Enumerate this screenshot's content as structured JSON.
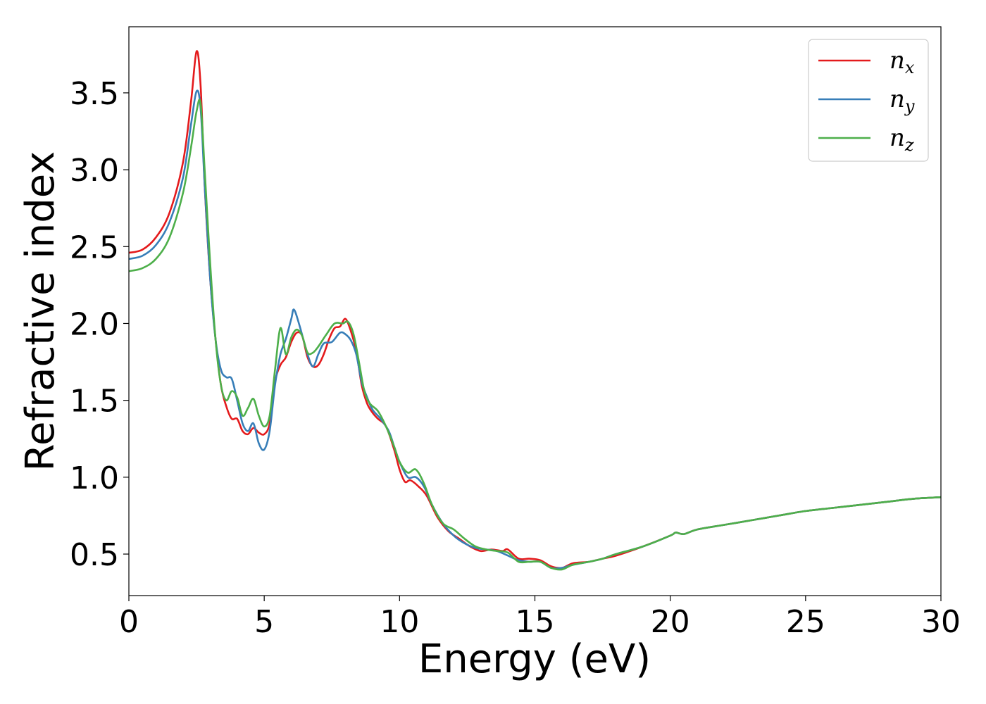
{
  "chart_data": {
    "type": "line",
    "xlabel": "Energy (eV)",
    "ylabel": "Refractive index",
    "xlim": [
      0,
      30
    ],
    "ylim": [
      0.23,
      3.93
    ],
    "xticks": [
      0,
      5,
      10,
      15,
      20,
      25,
      30
    ],
    "xtick_labels": [
      "0",
      "5",
      "10",
      "15",
      "20",
      "25",
      "30"
    ],
    "yticks": [
      0.5,
      1.0,
      1.5,
      2.0,
      2.5,
      3.0,
      3.5
    ],
    "ytick_labels": [
      "0.5",
      "1.0",
      "1.5",
      "2.0",
      "2.5",
      "3.0",
      "3.5"
    ],
    "grid": false,
    "legend_position": "top-right",
    "series": [
      {
        "name": "n_x",
        "label_base": "n",
        "label_sub": "x",
        "color": "#e41a1c",
        "points": [
          [
            0,
            2.46
          ],
          [
            0.5,
            2.48
          ],
          [
            1.0,
            2.56
          ],
          [
            1.5,
            2.72
          ],
          [
            2.0,
            3.05
          ],
          [
            2.3,
            3.45
          ],
          [
            2.5,
            3.77
          ],
          [
            2.65,
            3.55
          ],
          [
            2.8,
            2.9
          ],
          [
            3.0,
            2.3
          ],
          [
            3.2,
            1.9
          ],
          [
            3.4,
            1.6
          ],
          [
            3.6,
            1.46
          ],
          [
            3.8,
            1.38
          ],
          [
            4.0,
            1.38
          ],
          [
            4.2,
            1.3
          ],
          [
            4.4,
            1.28
          ],
          [
            4.6,
            1.32
          ],
          [
            4.8,
            1.29
          ],
          [
            5.0,
            1.28
          ],
          [
            5.2,
            1.35
          ],
          [
            5.4,
            1.62
          ],
          [
            5.6,
            1.73
          ],
          [
            5.8,
            1.78
          ],
          [
            6.0,
            1.88
          ],
          [
            6.2,
            1.94
          ],
          [
            6.4,
            1.92
          ],
          [
            6.6,
            1.78
          ],
          [
            6.8,
            1.72
          ],
          [
            7.0,
            1.73
          ],
          [
            7.2,
            1.8
          ],
          [
            7.4,
            1.9
          ],
          [
            7.6,
            1.97
          ],
          [
            7.8,
            1.98
          ],
          [
            8.0,
            2.03
          ],
          [
            8.2,
            1.95
          ],
          [
            8.4,
            1.82
          ],
          [
            8.6,
            1.6
          ],
          [
            8.8,
            1.48
          ],
          [
            9.0,
            1.42
          ],
          [
            9.2,
            1.38
          ],
          [
            9.5,
            1.33
          ],
          [
            9.8,
            1.18
          ],
          [
            10.0,
            1.05
          ],
          [
            10.2,
            0.97
          ],
          [
            10.4,
            0.98
          ],
          [
            10.7,
            0.94
          ],
          [
            11.0,
            0.88
          ],
          [
            11.4,
            0.74
          ],
          [
            11.8,
            0.65
          ],
          [
            12.2,
            0.6
          ],
          [
            12.6,
            0.55
          ],
          [
            13.0,
            0.52
          ],
          [
            13.4,
            0.53
          ],
          [
            13.8,
            0.52
          ],
          [
            14.0,
            0.53
          ],
          [
            14.4,
            0.47
          ],
          [
            14.8,
            0.47
          ],
          [
            15.2,
            0.46
          ],
          [
            15.6,
            0.42
          ],
          [
            16.0,
            0.41
          ],
          [
            16.4,
            0.44
          ],
          [
            17.0,
            0.45
          ],
          [
            17.5,
            0.47
          ],
          [
            18.0,
            0.49
          ],
          [
            19.0,
            0.55
          ],
          [
            20.0,
            0.62
          ],
          [
            20.2,
            0.64
          ],
          [
            20.5,
            0.63
          ],
          [
            21.0,
            0.66
          ],
          [
            22.0,
            0.69
          ],
          [
            23.0,
            0.72
          ],
          [
            24.0,
            0.75
          ],
          [
            25.0,
            0.78
          ],
          [
            26.0,
            0.8
          ],
          [
            27.0,
            0.82
          ],
          [
            28.0,
            0.84
          ],
          [
            29.0,
            0.86
          ],
          [
            30.0,
            0.87
          ]
        ]
      },
      {
        "name": "n_y",
        "label_base": "n",
        "label_sub": "y",
        "color": "#377eb8",
        "points": [
          [
            0,
            2.42
          ],
          [
            0.5,
            2.44
          ],
          [
            1.0,
            2.51
          ],
          [
            1.5,
            2.66
          ],
          [
            2.0,
            2.95
          ],
          [
            2.3,
            3.3
          ],
          [
            2.5,
            3.51
          ],
          [
            2.65,
            3.4
          ],
          [
            2.8,
            2.9
          ],
          [
            3.0,
            2.3
          ],
          [
            3.2,
            1.9
          ],
          [
            3.4,
            1.7
          ],
          [
            3.6,
            1.65
          ],
          [
            3.8,
            1.64
          ],
          [
            4.0,
            1.5
          ],
          [
            4.2,
            1.35
          ],
          [
            4.4,
            1.3
          ],
          [
            4.6,
            1.35
          ],
          [
            4.8,
            1.22
          ],
          [
            5.0,
            1.18
          ],
          [
            5.2,
            1.3
          ],
          [
            5.4,
            1.6
          ],
          [
            5.6,
            1.8
          ],
          [
            5.8,
            1.9
          ],
          [
            6.0,
            2.03
          ],
          [
            6.1,
            2.09
          ],
          [
            6.3,
            1.99
          ],
          [
            6.6,
            1.8
          ],
          [
            6.8,
            1.72
          ],
          [
            7.0,
            1.8
          ],
          [
            7.2,
            1.87
          ],
          [
            7.5,
            1.88
          ],
          [
            7.8,
            1.94
          ],
          [
            8.0,
            1.93
          ],
          [
            8.2,
            1.89
          ],
          [
            8.4,
            1.8
          ],
          [
            8.6,
            1.62
          ],
          [
            8.8,
            1.52
          ],
          [
            9.0,
            1.44
          ],
          [
            9.3,
            1.38
          ],
          [
            9.6,
            1.3
          ],
          [
            9.8,
            1.2
          ],
          [
            10.0,
            1.1
          ],
          [
            10.3,
            1.0
          ],
          [
            10.6,
            1.0
          ],
          [
            10.9,
            0.94
          ],
          [
            11.2,
            0.82
          ],
          [
            11.6,
            0.7
          ],
          [
            12.0,
            0.62
          ],
          [
            12.4,
            0.57
          ],
          [
            12.8,
            0.54
          ],
          [
            13.2,
            0.53
          ],
          [
            13.6,
            0.52
          ],
          [
            14.0,
            0.49
          ],
          [
            14.4,
            0.46
          ],
          [
            14.8,
            0.45
          ],
          [
            15.2,
            0.45
          ],
          [
            15.6,
            0.41
          ],
          [
            16.0,
            0.41
          ],
          [
            16.4,
            0.43
          ],
          [
            17.0,
            0.45
          ],
          [
            17.5,
            0.47
          ],
          [
            18.0,
            0.5
          ],
          [
            19.0,
            0.55
          ],
          [
            20.0,
            0.62
          ],
          [
            20.2,
            0.64
          ],
          [
            20.5,
            0.63
          ],
          [
            21.0,
            0.66
          ],
          [
            22.0,
            0.69
          ],
          [
            23.0,
            0.72
          ],
          [
            24.0,
            0.75
          ],
          [
            25.0,
            0.78
          ],
          [
            26.0,
            0.8
          ],
          [
            27.0,
            0.82
          ],
          [
            28.0,
            0.84
          ],
          [
            29.0,
            0.86
          ],
          [
            30.0,
            0.87
          ]
        ]
      },
      {
        "name": "n_z",
        "label_base": "n",
        "label_sub": "z",
        "color": "#4daf4a",
        "points": [
          [
            0,
            2.34
          ],
          [
            0.5,
            2.36
          ],
          [
            1.0,
            2.42
          ],
          [
            1.5,
            2.56
          ],
          [
            2.0,
            2.85
          ],
          [
            2.3,
            3.15
          ],
          [
            2.5,
            3.38
          ],
          [
            2.65,
            3.43
          ],
          [
            2.8,
            3.0
          ],
          [
            3.0,
            2.4
          ],
          [
            3.2,
            1.9
          ],
          [
            3.4,
            1.6
          ],
          [
            3.6,
            1.5
          ],
          [
            3.8,
            1.56
          ],
          [
            4.0,
            1.52
          ],
          [
            4.2,
            1.4
          ],
          [
            4.4,
            1.45
          ],
          [
            4.6,
            1.51
          ],
          [
            4.8,
            1.4
          ],
          [
            5.0,
            1.33
          ],
          [
            5.2,
            1.4
          ],
          [
            5.4,
            1.7
          ],
          [
            5.6,
            1.97
          ],
          [
            5.8,
            1.8
          ],
          [
            6.0,
            1.91
          ],
          [
            6.2,
            1.96
          ],
          [
            6.4,
            1.92
          ],
          [
            6.6,
            1.81
          ],
          [
            6.8,
            1.81
          ],
          [
            7.0,
            1.85
          ],
          [
            7.3,
            1.93
          ],
          [
            7.6,
            2.0
          ],
          [
            7.9,
            2.0
          ],
          [
            8.1,
            2.01
          ],
          [
            8.3,
            1.93
          ],
          [
            8.5,
            1.75
          ],
          [
            8.7,
            1.56
          ],
          [
            8.9,
            1.48
          ],
          [
            9.2,
            1.43
          ],
          [
            9.5,
            1.33
          ],
          [
            9.8,
            1.2
          ],
          [
            10.0,
            1.1
          ],
          [
            10.3,
            1.03
          ],
          [
            10.6,
            1.05
          ],
          [
            10.9,
            0.96
          ],
          [
            11.2,
            0.82
          ],
          [
            11.6,
            0.7
          ],
          [
            12.0,
            0.66
          ],
          [
            12.4,
            0.6
          ],
          [
            12.8,
            0.55
          ],
          [
            13.2,
            0.53
          ],
          [
            13.6,
            0.52
          ],
          [
            14.0,
            0.51
          ],
          [
            14.4,
            0.45
          ],
          [
            14.8,
            0.45
          ],
          [
            15.2,
            0.45
          ],
          [
            15.6,
            0.41
          ],
          [
            16.0,
            0.4
          ],
          [
            16.4,
            0.43
          ],
          [
            17.0,
            0.45
          ],
          [
            17.5,
            0.47
          ],
          [
            18.0,
            0.5
          ],
          [
            19.0,
            0.55
          ],
          [
            20.0,
            0.62
          ],
          [
            20.2,
            0.64
          ],
          [
            20.5,
            0.63
          ],
          [
            21.0,
            0.66
          ],
          [
            22.0,
            0.69
          ],
          [
            23.0,
            0.72
          ],
          [
            24.0,
            0.75
          ],
          [
            25.0,
            0.78
          ],
          [
            26.0,
            0.8
          ],
          [
            27.0,
            0.82
          ],
          [
            28.0,
            0.84
          ],
          [
            29.0,
            0.86
          ],
          [
            30.0,
            0.87
          ]
        ]
      }
    ]
  }
}
